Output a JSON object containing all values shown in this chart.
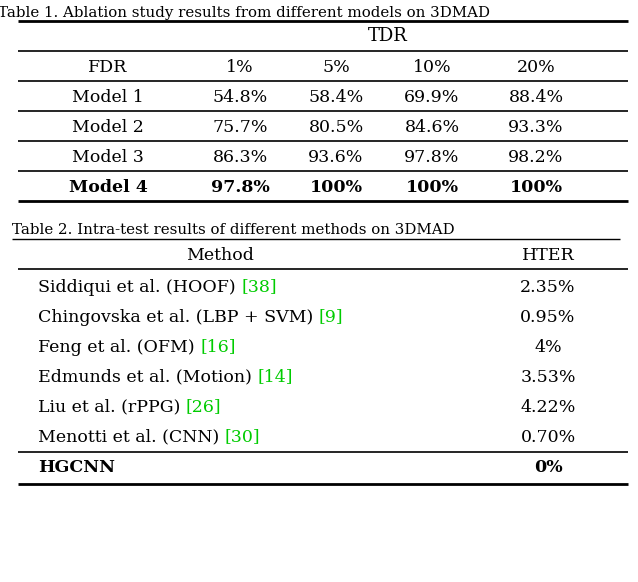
{
  "table1_title": "Table 1. Ablation study results from different models on 3DMAD",
  "table1_header_row2": [
    "FDR",
    "1%",
    "5%",
    "10%",
    "20%"
  ],
  "table1_rows": [
    [
      "Model 1",
      "54.8%",
      "58.4%",
      "69.9%",
      "88.4%"
    ],
    [
      "Model 2",
      "75.7%",
      "80.5%",
      "84.6%",
      "93.3%"
    ],
    [
      "Model 3",
      "86.3%",
      "93.6%",
      "97.8%",
      "98.2%"
    ],
    [
      "Model 4",
      "97.8%",
      "100%",
      "100%",
      "100%"
    ]
  ],
  "table1_bold_row": 3,
  "table2_title": "Table 2. Intra-test results of different methods on 3DMAD",
  "table2_header": [
    "Method",
    "HTER"
  ],
  "table2_rows_black": [
    "Siddiqui et al. (HOOF) ",
    "Chingovska et al. (LBP + SVM) ",
    "Feng et al. (OFM) ",
    "Edmunds et al. (Motion) ",
    "Liu et al. (rPPG) ",
    "Menotti et al. (CNN) ",
    "HGCNN"
  ],
  "table2_rows_green": [
    "[38]",
    "[9]",
    "[16]",
    "[14]",
    "[26]",
    "[30]",
    ""
  ],
  "table2_hter": [
    "2.35%",
    "0.95%",
    "4%",
    "3.53%",
    "4.22%",
    "0.70%",
    "0%"
  ],
  "table2_bold_row": 6,
  "background_color": "#ffffff",
  "text_color": "#000000",
  "green_color": "#00cc00",
  "fontsize": 12.5
}
